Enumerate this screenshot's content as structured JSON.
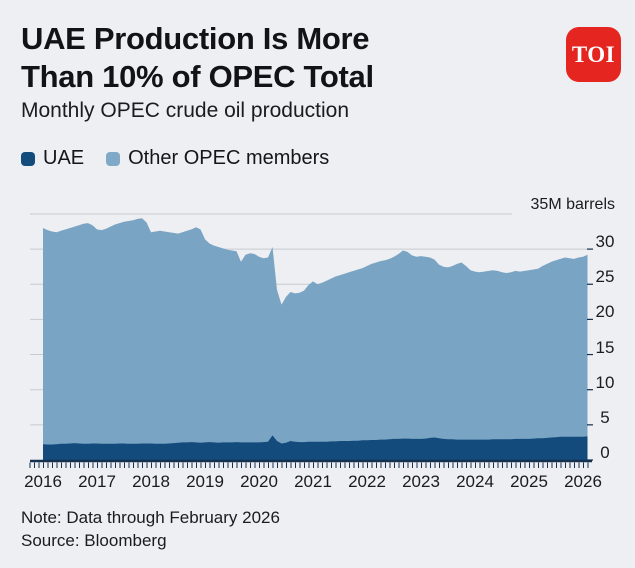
{
  "header": {
    "title_line1": "UAE Production Is More",
    "title_line2": "Than 10% of OPEC Total",
    "subtitle": "Monthly OPEC crude oil production",
    "logo_text": "TOI"
  },
  "legend": [
    {
      "label": "UAE",
      "color": "#134B7D"
    },
    {
      "label": "Other OPEC members",
      "color": "#7FA9C7"
    }
  ],
  "footer": {
    "note": "Note: Data through February 2026",
    "source": "Source: Bloomberg"
  },
  "colors": {
    "background": "#EDEFF2",
    "area_uae": "#134B7D",
    "area_other": "#7AA4C3",
    "gridline": "#C7CBCF",
    "axis": "#14314F",
    "text": "#15151a",
    "logo_red": "#E52520"
  },
  "chart_data": {
    "type": "area",
    "stacked": true,
    "title": "Monthly OPEC crude oil production",
    "top_label": "35M barrels",
    "x_start": "2016-01",
    "x_end": "2026-02",
    "x_labels": [
      2016,
      2017,
      2018,
      2019,
      2020,
      2021,
      2022,
      2023,
      2024,
      2025,
      2026
    ],
    "y_tick_labels": [
      30,
      25,
      20,
      15,
      10,
      5,
      0
    ],
    "ylim": [
      0,
      35
    ],
    "grid": true,
    "legend_position": "top-left",
    "unit": "million barrels per day",
    "series": [
      {
        "name": "UAE",
        "color": "#134B7D",
        "values": [
          2.25,
          2.2,
          2.2,
          2.25,
          2.3,
          2.3,
          2.35,
          2.4,
          2.35,
          2.3,
          2.3,
          2.35,
          2.35,
          2.3,
          2.3,
          2.3,
          2.3,
          2.35,
          2.35,
          2.3,
          2.3,
          2.3,
          2.35,
          2.35,
          2.35,
          2.3,
          2.3,
          2.3,
          2.35,
          2.4,
          2.45,
          2.5,
          2.5,
          2.55,
          2.5,
          2.45,
          2.5,
          2.55,
          2.5,
          2.45,
          2.5,
          2.5,
          2.5,
          2.55,
          2.5,
          2.5,
          2.5,
          2.5,
          2.5,
          2.55,
          2.6,
          3.5,
          2.7,
          2.35,
          2.45,
          2.7,
          2.6,
          2.55,
          2.55,
          2.6,
          2.6,
          2.6,
          2.6,
          2.6,
          2.65,
          2.65,
          2.7,
          2.7,
          2.7,
          2.75,
          2.75,
          2.8,
          2.8,
          2.85,
          2.85,
          2.9,
          2.9,
          2.95,
          3.0,
          3.0,
          3.05,
          3.05,
          3.0,
          3.0,
          3.0,
          3.05,
          3.15,
          3.2,
          3.1,
          3.0,
          2.95,
          2.95,
          2.9,
          2.9,
          2.9,
          2.9,
          2.9,
          2.9,
          2.9,
          2.9,
          2.95,
          2.95,
          2.95,
          2.95,
          2.95,
          3.0,
          3.0,
          3.0,
          3.0,
          3.05,
          3.1,
          3.1,
          3.15,
          3.2,
          3.25,
          3.3,
          3.3,
          3.3,
          3.3,
          3.3,
          3.3,
          3.35
        ]
      },
      {
        "name": "Total OPEC (stack top, UAE + other members)",
        "color": "#7AA4C3",
        "values": [
          33.0,
          32.7,
          32.5,
          32.4,
          32.6,
          32.8,
          33.0,
          33.2,
          33.4,
          33.6,
          33.7,
          33.4,
          32.8,
          32.7,
          32.9,
          33.2,
          33.5,
          33.7,
          33.9,
          34.0,
          34.1,
          34.3,
          34.4,
          33.8,
          32.4,
          32.5,
          32.6,
          32.5,
          32.4,
          32.3,
          32.2,
          32.4,
          32.6,
          32.8,
          33.1,
          32.8,
          31.4,
          30.8,
          30.5,
          30.3,
          30.1,
          29.9,
          29.8,
          29.7,
          28.2,
          29.2,
          29.4,
          29.3,
          28.9,
          28.7,
          28.8,
          30.3,
          24.2,
          22.1,
          23.2,
          23.9,
          23.7,
          23.8,
          24.1,
          24.9,
          25.4,
          25.0,
          25.2,
          25.5,
          25.8,
          26.1,
          26.3,
          26.5,
          26.7,
          26.9,
          27.1,
          27.3,
          27.6,
          27.9,
          28.1,
          28.3,
          28.4,
          28.6,
          28.9,
          29.3,
          29.8,
          29.6,
          29.1,
          28.9,
          29.0,
          28.9,
          28.8,
          28.5,
          27.8,
          27.5,
          27.4,
          27.6,
          27.9,
          28.1,
          27.6,
          27.0,
          26.8,
          26.7,
          26.8,
          26.9,
          27.0,
          26.9,
          26.7,
          26.6,
          26.7,
          26.9,
          26.8,
          26.9,
          27.0,
          27.1,
          27.2,
          27.6,
          27.9,
          28.2,
          28.4,
          28.6,
          28.8,
          28.7,
          28.6,
          28.8,
          28.9,
          29.2
        ]
      }
    ]
  }
}
